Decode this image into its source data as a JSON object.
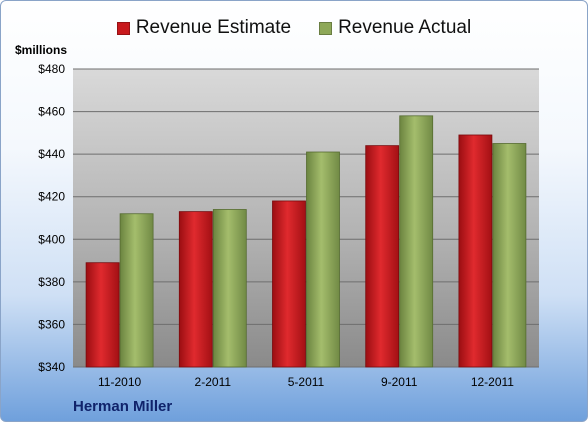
{
  "chart_data": {
    "type": "bar",
    "title": "",
    "ylabel": "$millions",
    "xlabel": "",
    "categories": [
      "11-2010",
      "2-2011",
      "5-2011",
      "9-2011",
      "12-2011"
    ],
    "series": [
      {
        "name": "Revenue Estimate",
        "values": [
          389,
          413,
          418,
          444,
          449
        ]
      },
      {
        "name": "Revenue Actual",
        "values": [
          412,
          414,
          441,
          458,
          445
        ]
      }
    ],
    "ylim": [
      340,
      480
    ],
    "yticks": [
      "$340",
      "$360",
      "$380",
      "$400",
      "$420",
      "$440",
      "$460",
      "$480"
    ],
    "grid": true,
    "legend_position": "top-center"
  },
  "colors": {
    "estimate": "#c8191d",
    "actual": "#8ea858"
  },
  "company_label": "Herman Miller"
}
